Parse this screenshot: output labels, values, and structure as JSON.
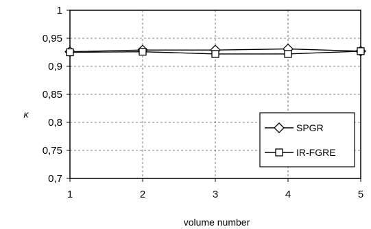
{
  "chart_data": {
    "type": "line",
    "xlabel": "volume number",
    "ylabel": "κ",
    "x": [
      1,
      2,
      3,
      4,
      5
    ],
    "x_tick_labels": [
      "1",
      "2",
      "3",
      "4",
      "5"
    ],
    "xlim": [
      1,
      5
    ],
    "ylim": [
      0.7,
      1
    ],
    "y_tick_labels": [
      "0,7",
      "0,75",
      "0,8",
      "0,85",
      "0,9",
      "0,95",
      "1"
    ],
    "y_ticks": [
      0.7,
      0.75,
      0.8,
      0.85,
      0.9,
      0.95,
      1
    ],
    "grid": "dashed",
    "legend_position": "right",
    "series": [
      {
        "name": "SPGR",
        "marker": "diamond",
        "color": "#000000",
        "values": [
          0.926,
          0.929,
          0.929,
          0.931,
          0.927
        ]
      },
      {
        "name": "IR-FGRE",
        "marker": "square",
        "color": "#000000",
        "values": [
          0.925,
          0.926,
          0.922,
          0.922,
          0.927
        ]
      }
    ]
  }
}
